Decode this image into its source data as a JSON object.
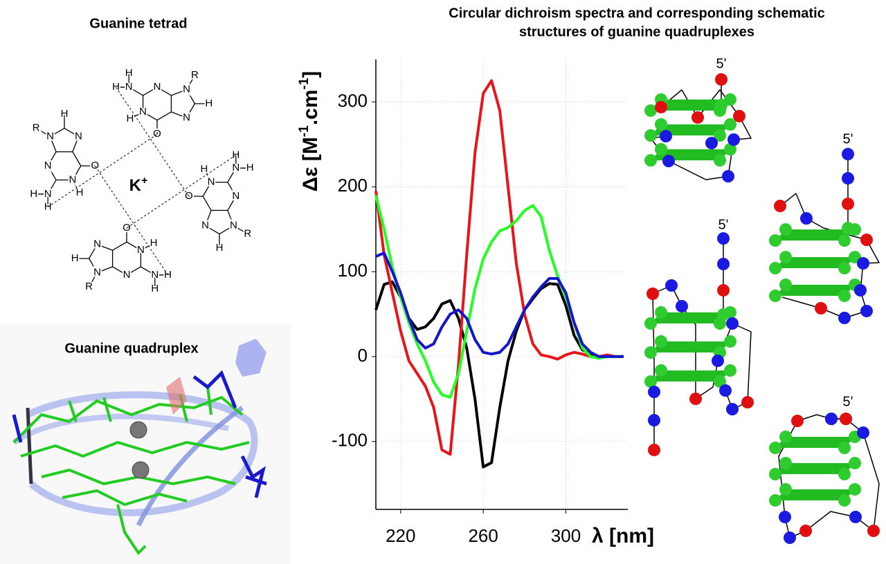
{
  "tetrad": {
    "title": "Guanine tetrad",
    "ion": "K",
    "ion_charge": "+",
    "bases": [
      {
        "atoms": [
          "O",
          "N",
          "H",
          "N",
          "H",
          "H",
          "N",
          "N",
          "H",
          "N",
          "R"
        ]
      },
      {
        "atoms": [
          "O",
          "N",
          "H",
          "N",
          "H",
          "H",
          "N",
          "N",
          "H",
          "N",
          "R"
        ]
      },
      {
        "atoms": [
          "O",
          "N",
          "H",
          "N",
          "H",
          "H",
          "N",
          "N",
          "H",
          "N",
          "R"
        ]
      },
      {
        "atoms": [
          "O",
          "N",
          "H",
          "N",
          "H",
          "H",
          "N",
          "N",
          "H",
          "N",
          "R"
        ]
      }
    ]
  },
  "quadruplex": {
    "title": "Guanine quadruplex"
  },
  "chart_data": {
    "type": "line",
    "title": [
      "Circular dichroism spectra and corresponding schematic",
      "structures of guanine quadruplexes"
    ],
    "x_label": "λ [nm]",
    "y_label_parts": [
      "Δε [M",
      "-1",
      ".cm",
      "-1",
      "]"
    ],
    "x": [
      208,
      212,
      216,
      220,
      224,
      228,
      232,
      236,
      240,
      244,
      248,
      252,
      256,
      260,
      264,
      268,
      272,
      276,
      280,
      284,
      288,
      292,
      296,
      300,
      304,
      308,
      312,
      316,
      320,
      324,
      328
    ],
    "xlim": [
      208,
      330
    ],
    "ylim": [
      -180,
      350
    ],
    "xticks": [
      220,
      260,
      300
    ],
    "yticks": [
      -100,
      0,
      100,
      200,
      300
    ],
    "grid": true,
    "series": [
      {
        "color": "#000000",
        "values": [
          55,
          85,
          88,
          70,
          45,
          32,
          35,
          45,
          62,
          66,
          45,
          10,
          -50,
          -130,
          -125,
          -60,
          -5,
          30,
          55,
          68,
          80,
          86,
          85,
          60,
          25,
          8,
          3,
          0,
          0,
          0,
          0
        ]
      },
      {
        "color": "#e8141a",
        "values": [
          195,
          120,
          75,
          30,
          -5,
          -20,
          -35,
          -60,
          -110,
          -115,
          -10,
          120,
          240,
          310,
          325,
          290,
          200,
          110,
          50,
          15,
          2,
          0,
          -3,
          2,
          5,
          3,
          0,
          0,
          2,
          0,
          0
        ]
      },
      {
        "color": "#22ff22",
        "values": [
          190,
          150,
          105,
          70,
          40,
          15,
          -5,
          -30,
          -45,
          -48,
          -20,
          30,
          80,
          115,
          135,
          148,
          152,
          160,
          172,
          178,
          165,
          125,
          95,
          70,
          40,
          10,
          0,
          -2,
          0,
          0,
          0
        ]
      },
      {
        "color": "#1515cc",
        "values": [
          118,
          122,
          100,
          75,
          45,
          20,
          10,
          15,
          35,
          50,
          55,
          45,
          20,
          5,
          3,
          5,
          15,
          35,
          55,
          70,
          82,
          92,
          92,
          75,
          40,
          15,
          5,
          0,
          0,
          0,
          0
        ]
      }
    ]
  },
  "schematics": [
    {
      "label": "5'"
    },
    {
      "label": "5'"
    },
    {
      "label": "5'"
    },
    {
      "label": "5'"
    }
  ]
}
